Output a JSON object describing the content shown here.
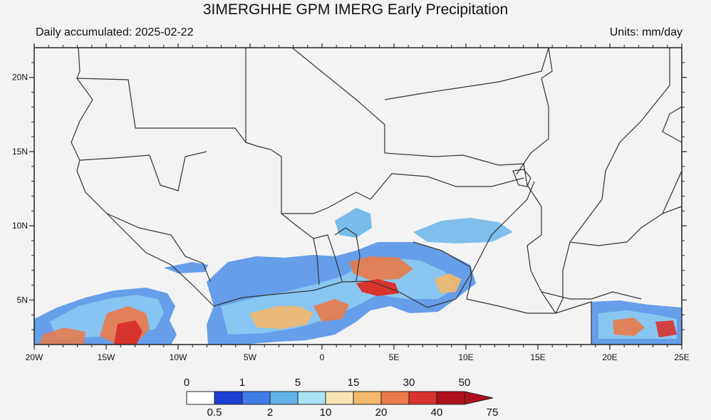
{
  "title": "3IMERGHHE GPM IMERG Early Precipitation",
  "subtitle_left": "Daily accumulated: 2025-02-22",
  "subtitle_right": "Units: mm/day",
  "map": {
    "x_tick_labels": [
      "20W",
      "15W",
      "10W",
      "5W",
      "0",
      "5E",
      "10E",
      "15E",
      "20E",
      "25E"
    ],
    "y_tick_labels": [
      "5N",
      "10N",
      "15N",
      "20N"
    ],
    "lon_range": [
      -20,
      25
    ],
    "lat_range": [
      2,
      22
    ]
  },
  "colorbar": {
    "top_labels": [
      "0",
      "1",
      "5",
      "15",
      "30",
      "50"
    ],
    "bottom_labels": [
      "0.5",
      "2",
      "10",
      "20",
      "40",
      "75"
    ],
    "colors": [
      "#ffffff",
      "#1c3fd6",
      "#3f7de8",
      "#62b2ea",
      "#a9e2f5",
      "#f7e6b4",
      "#f4b76b",
      "#ea7a48",
      "#d8332c",
      "#b0101c"
    ]
  }
}
